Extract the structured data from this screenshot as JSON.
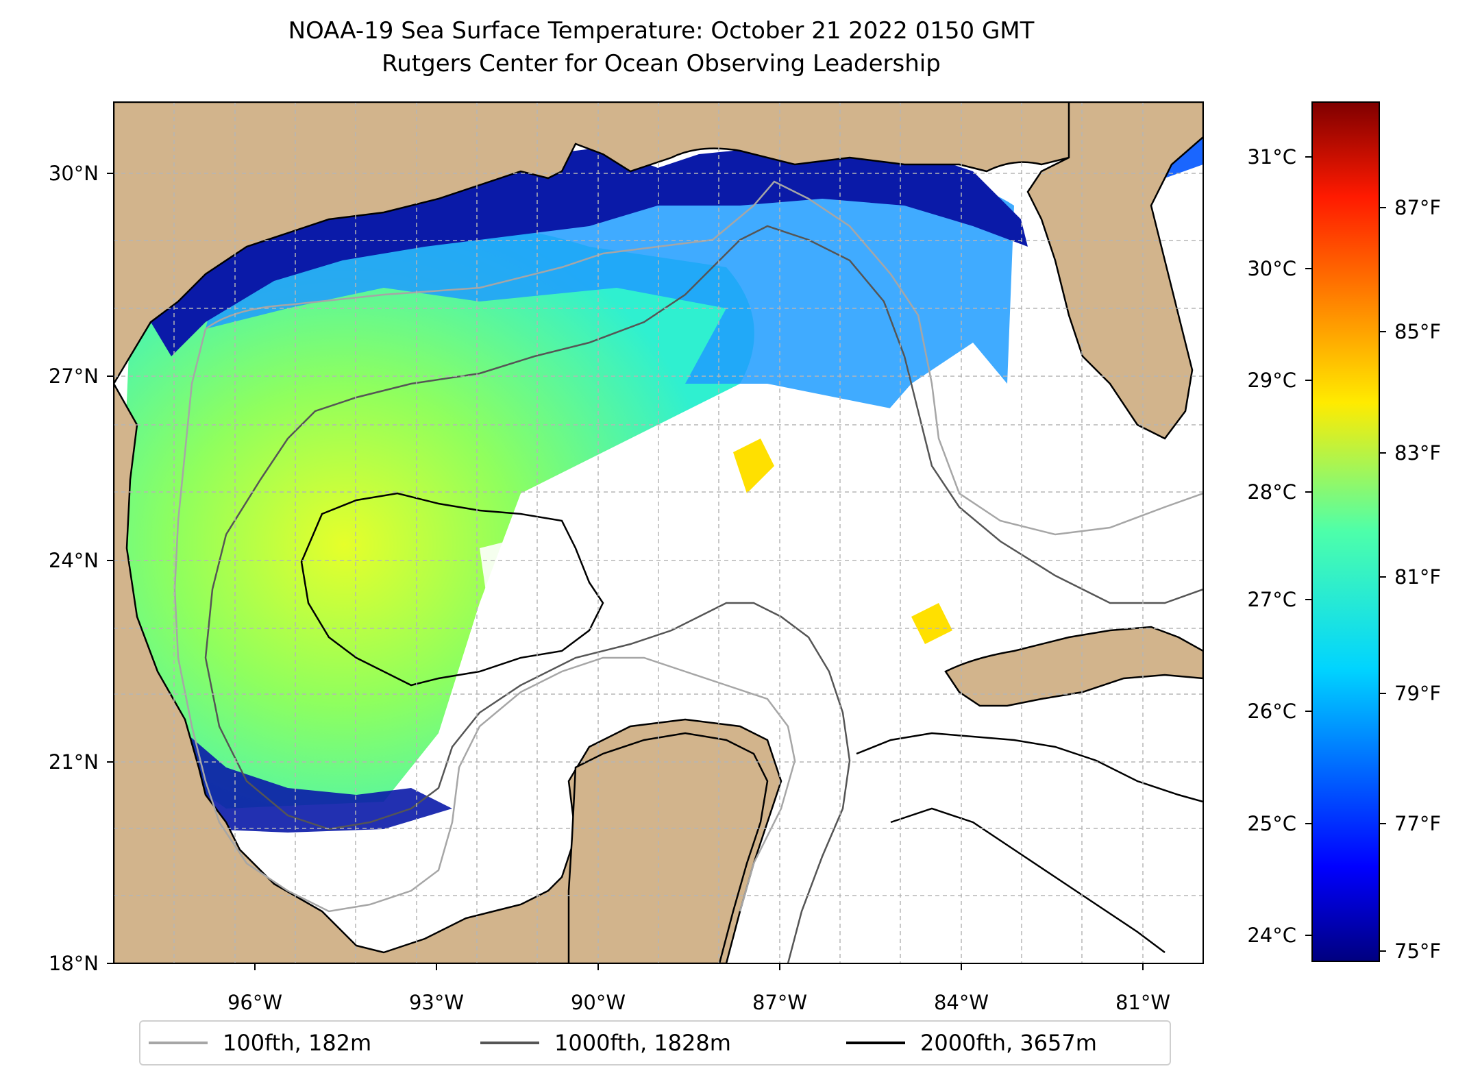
{
  "title": "NOAA-19 Sea Surface Temperature: October 21 2022 0150 GMT",
  "subtitle": "Rutgers Center for Ocean Observing Leadership",
  "map": {
    "lon_range": [
      -98.3,
      -80.3
    ],
    "lat_range": [
      18,
      30.9
    ],
    "lon_ticks": [
      "96°W",
      "93°W",
      "90°W",
      "87°W",
      "84°W",
      "81°W"
    ],
    "lat_ticks": [
      "18°N",
      "21°N",
      "24°N",
      "27°N",
      "30°N"
    ],
    "land_color": "#d2b48c",
    "gridlines": true
  },
  "colorbar": {
    "colormap": "jet",
    "celsius_ticks": [
      "24°C",
      "25°C",
      "26°C",
      "27°C",
      "28°C",
      "29°C",
      "30°C",
      "31°C"
    ],
    "fahrenheit_ticks": [
      "75°F",
      "77°F",
      "79°F",
      "81°F",
      "83°F",
      "85°F",
      "87°F"
    ]
  },
  "legend": {
    "items": [
      {
        "label": "100fth, 182m",
        "color": "#a6a6a6"
      },
      {
        "label": "1000fth, 1828m",
        "color": "#555555"
      },
      {
        "label": "2000fth, 3657m",
        "color": "#000000"
      }
    ]
  }
}
